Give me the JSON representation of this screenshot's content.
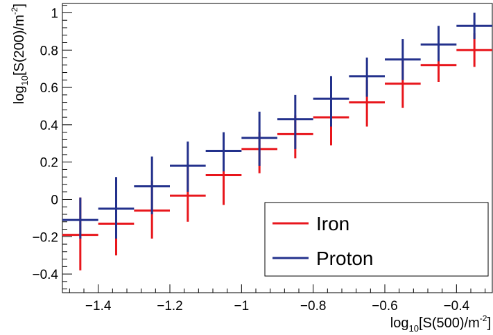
{
  "chart_data": {
    "type": "scatter",
    "xlabel": {
      "pre": "log",
      "sub": "10",
      "mid": "[S(500)/m",
      "sup": "-2",
      "post": "]"
    },
    "ylabel": {
      "pre": "log",
      "sub": "10",
      "mid": "[S(200)/m",
      "sup": "-2",
      "post": "]"
    },
    "xlim": [
      -1.5,
      -0.3
    ],
    "ylim": [
      -0.5,
      1.05
    ],
    "xticks": [
      -1.4,
      -1.2,
      -1.0,
      -0.8,
      -0.6,
      -0.4
    ],
    "xtick_labels": [
      "−1.4",
      "−1.2",
      "−1",
      "−0.8",
      "−0.6",
      "−0.4"
    ],
    "yticks": [
      -0.4,
      -0.2,
      0,
      0.2,
      0.4,
      0.6,
      0.8,
      1.0
    ],
    "ytick_labels": [
      "−0.4",
      "−0.2",
      "0",
      "0.2",
      "0.4",
      "0.6",
      "0.8",
      "1"
    ],
    "grid": false,
    "legend_placement": "bottom-right",
    "series": [
      {
        "name": "Iron",
        "color": "#e8161c",
        "points": [
          {
            "x": -1.45,
            "xlo": -1.5,
            "xhi": -1.4,
            "y": -0.19,
            "ylo": -0.38,
            "yhi": 0.01
          },
          {
            "x": -1.35,
            "xlo": -1.4,
            "xhi": -1.3,
            "y": -0.13,
            "ylo": -0.3,
            "yhi": 0.04
          },
          {
            "x": -1.25,
            "xlo": -1.3,
            "xhi": -1.2,
            "y": -0.06,
            "ylo": -0.21,
            "yhi": 0.1
          },
          {
            "x": -1.15,
            "xlo": -1.2,
            "xhi": -1.1,
            "y": 0.02,
            "ylo": -0.12,
            "yhi": 0.18
          },
          {
            "x": -1.05,
            "xlo": -1.1,
            "xhi": -1.0,
            "y": 0.13,
            "ylo": -0.03,
            "yhi": 0.26
          },
          {
            "x": -0.95,
            "xlo": -1.0,
            "xhi": -0.9,
            "y": 0.27,
            "ylo": 0.14,
            "yhi": 0.36
          },
          {
            "x": -0.85,
            "xlo": -0.9,
            "xhi": -0.8,
            "y": 0.35,
            "ylo": 0.22,
            "yhi": 0.45
          },
          {
            "x": -0.75,
            "xlo": -0.8,
            "xhi": -0.7,
            "y": 0.44,
            "ylo": 0.29,
            "yhi": 0.54
          },
          {
            "x": -0.65,
            "xlo": -0.7,
            "xhi": -0.6,
            "y": 0.52,
            "ylo": 0.39,
            "yhi": 0.64
          },
          {
            "x": -0.55,
            "xlo": -0.6,
            "xhi": -0.5,
            "y": 0.62,
            "ylo": 0.49,
            "yhi": 0.75
          },
          {
            "x": -0.45,
            "xlo": -0.5,
            "xhi": -0.4,
            "y": 0.72,
            "ylo": 0.63,
            "yhi": 0.82
          },
          {
            "x": -0.35,
            "xlo": -0.4,
            "xhi": -0.3,
            "y": 0.8,
            "ylo": 0.71,
            "yhi": 0.89
          }
        ]
      },
      {
        "name": "Proton",
        "color": "#23318c",
        "points": [
          {
            "x": -1.45,
            "xlo": -1.5,
            "xhi": -1.4,
            "y": -0.11,
            "ylo": -0.21,
            "yhi": 0.01
          },
          {
            "x": -1.35,
            "xlo": -1.4,
            "xhi": -1.3,
            "y": -0.05,
            "ylo": -0.21,
            "yhi": 0.12
          },
          {
            "x": -1.25,
            "xlo": -1.3,
            "xhi": -1.2,
            "y": 0.07,
            "ylo": -0.08,
            "yhi": 0.23
          },
          {
            "x": -1.15,
            "xlo": -1.2,
            "xhi": -1.1,
            "y": 0.18,
            "ylo": 0.04,
            "yhi": 0.31
          },
          {
            "x": -1.05,
            "xlo": -1.1,
            "xhi": -1.0,
            "y": 0.26,
            "ylo": 0.15,
            "yhi": 0.36
          },
          {
            "x": -0.95,
            "xlo": -1.0,
            "xhi": -0.9,
            "y": 0.33,
            "ylo": 0.18,
            "yhi": 0.47
          },
          {
            "x": -0.85,
            "xlo": -0.9,
            "xhi": -0.8,
            "y": 0.43,
            "ylo": 0.27,
            "yhi": 0.56
          },
          {
            "x": -0.75,
            "xlo": -0.8,
            "xhi": -0.7,
            "y": 0.54,
            "ylo": 0.39,
            "yhi": 0.66
          },
          {
            "x": -0.65,
            "xlo": -0.7,
            "xhi": -0.6,
            "y": 0.66,
            "ylo": 0.55,
            "yhi": 0.76
          },
          {
            "x": -0.55,
            "xlo": -0.6,
            "xhi": -0.5,
            "y": 0.75,
            "ylo": 0.64,
            "yhi": 0.86
          },
          {
            "x": -0.45,
            "xlo": -0.5,
            "xhi": -0.4,
            "y": 0.83,
            "ylo": 0.74,
            "yhi": 0.93
          },
          {
            "x": -0.35,
            "xlo": -0.4,
            "xhi": -0.3,
            "y": 0.93,
            "ylo": 0.86,
            "yhi": 1.0
          }
        ]
      }
    ]
  }
}
